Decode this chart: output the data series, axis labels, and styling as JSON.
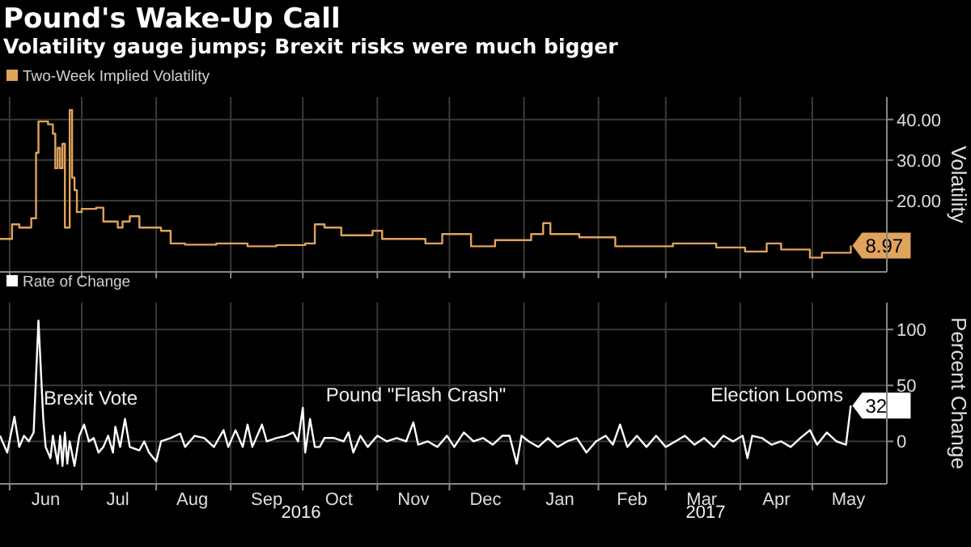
{
  "chart_data": [
    {
      "type": "step",
      "title": "Pound's Wake-Up Call",
      "subtitle": "Volatility gauge jumps; Brexit risks were much bigger",
      "ylabel": "Volatility",
      "legend": "top left",
      "grid": true,
      "tick_labels": "y",
      "xlim": [
        "2016-05-28",
        "2017-06-01"
      ],
      "xticks": [
        {
          "value": "2016-06-01",
          "label": null
        },
        {
          "value": "2016-07-01",
          "label": null
        },
        {
          "value": "2016-08-01",
          "label": null
        },
        {
          "value": "2016-09-01",
          "label": null
        },
        {
          "value": "2016-10-01",
          "label": null
        },
        {
          "value": "2016-11-01",
          "label": null
        },
        {
          "value": "2016-12-01",
          "label": null
        },
        {
          "value": "2017-01-01",
          "label": null
        },
        {
          "value": "2017-02-01",
          "label": null
        },
        {
          "value": "2017-03-01",
          "label": null
        },
        {
          "value": "2017-04-01",
          "label": null
        },
        {
          "value": "2017-05-01",
          "label": null
        }
      ],
      "ylim": [
        2.5,
        45.5
      ],
      "yticks": [
        {
          "value": 20,
          "label": "20.00"
        },
        {
          "value": 30,
          "label": "30.00"
        },
        {
          "value": 40,
          "label": "40.00"
        }
      ],
      "x": [
        "2016-05-28",
        "2016-06-01",
        "2016-06-02",
        "2016-06-05",
        "2016-06-10",
        "2016-06-12",
        "2016-06-13",
        "2016-06-17",
        "2016-06-19",
        "2016-06-20",
        "2016-06-21",
        "2016-06-22",
        "2016-06-23",
        "2016-06-24",
        "2016-06-26",
        "2016-06-27",
        "2016-06-28",
        "2016-06-29",
        "2016-07-01",
        "2016-07-07",
        "2016-07-10",
        "2016-07-16",
        "2016-07-18",
        "2016-07-21",
        "2016-07-25",
        "2016-08-03",
        "2016-08-07",
        "2016-08-13",
        "2016-08-26",
        "2016-09-08",
        "2016-09-20",
        "2016-10-02",
        "2016-10-06",
        "2016-10-10",
        "2016-10-17",
        "2016-10-30",
        "2016-11-03",
        "2016-11-21",
        "2016-11-28",
        "2016-12-10",
        "2016-12-20",
        "2017-01-04",
        "2017-01-09",
        "2017-01-12",
        "2017-01-24",
        "2017-02-08",
        "2017-02-23",
        "2017-03-04",
        "2017-03-22",
        "2017-04-03",
        "2017-04-12",
        "2017-04-18",
        "2017-04-30",
        "2017-05-05",
        "2017-05-15",
        "2017-05-17"
      ],
      "series": [
        {
          "name": "Two-Week Implied Volatility",
          "color": "#e0a35a",
          "values": [
            10.6,
            10.6,
            14.2,
            13.4,
            15.7,
            31.8,
            39.5,
            38.8,
            36.5,
            28,
            33,
            28,
            34,
            13.4,
            42.3,
            25.7,
            22.6,
            17.2,
            18,
            18.3,
            14.9,
            13.4,
            14.9,
            16.2,
            13.4,
            12.6,
            9.5,
            9.2,
            9.5,
            8.8,
            9.1,
            9.5,
            14.2,
            13.4,
            11.5,
            12.6,
            10.6,
            9.5,
            11.8,
            8.8,
            10.3,
            11.8,
            14.5,
            11.8,
            11,
            8.8,
            8.8,
            9.5,
            8.5,
            7.5,
            9.5,
            8,
            6,
            7.2,
            7.2,
            8.97
          ],
          "value_labels": [
            null,
            null,
            null,
            null,
            null,
            null,
            null,
            null,
            null,
            null,
            null,
            null,
            null,
            null,
            null,
            null,
            null,
            null,
            null,
            null,
            null,
            null,
            null,
            null,
            null,
            null,
            null,
            null,
            null,
            null,
            null,
            null,
            null,
            null,
            null,
            null,
            null,
            null,
            null,
            null,
            null,
            null,
            null,
            null,
            null,
            null,
            null,
            null,
            null,
            null,
            null,
            null,
            null,
            null,
            null,
            "8.97"
          ]
        }
      ]
    },
    {
      "type": "line",
      "ylabel": "Percent Change",
      "legend": "top left",
      "grid": true,
      "xlim": [
        "2016-05-28",
        "2017-06-01"
      ],
      "xticks": [
        {
          "value": "2016-06-01",
          "label": null
        },
        {
          "value": "2016-06-16",
          "label": "Jun"
        },
        {
          "value": "2016-07-01",
          "label": null
        },
        {
          "value": "2016-07-16",
          "label": "Jul"
        },
        {
          "value": "2016-08-01",
          "label": null
        },
        {
          "value": "2016-08-16",
          "label": "Aug"
        },
        {
          "value": "2016-09-01",
          "label": null
        },
        {
          "value": "2016-09-16",
          "label": "Sep"
        },
        {
          "value": "2016-10-01",
          "label": null
        },
        {
          "value": "2016-10-16",
          "label": "Oct"
        },
        {
          "value": "2016-11-01",
          "label": null
        },
        {
          "value": "2016-11-16",
          "label": "Nov"
        },
        {
          "value": "2016-12-01",
          "label": null
        },
        {
          "value": "2016-12-16",
          "label": "Dec"
        },
        {
          "value": "2017-01-01",
          "label": null
        },
        {
          "value": "2017-01-16",
          "label": "Jan"
        },
        {
          "value": "2017-02-01",
          "label": null
        },
        {
          "value": "2017-02-15",
          "label": "Feb"
        },
        {
          "value": "2017-03-01",
          "label": null
        },
        {
          "value": "2017-03-16",
          "label": "Mar"
        },
        {
          "value": "2017-04-01",
          "label": null
        },
        {
          "value": "2017-04-16",
          "label": "Apr"
        },
        {
          "value": "2017-05-01",
          "label": null
        },
        {
          "value": "2017-05-16",
          "label": "May"
        }
      ],
      "ylim": [
        -38,
        124
      ],
      "yticks": [
        0,
        50,
        100
      ],
      "annotations": [
        "Brexit Vote",
        "Pound \"Flash Crash\"",
        "Election Looms",
        "2016",
        "2017"
      ],
      "x": [
        "2016-05-28",
        "2016-05-31",
        "2016-06-03",
        "2016-06-05",
        "2016-06-07",
        "2016-06-09",
        "2016-06-11",
        "2016-06-13",
        "2016-06-15",
        "2016-06-16",
        "2016-06-18",
        "2016-06-19",
        "2016-06-21",
        "2016-06-22",
        "2016-06-23",
        "2016-06-24",
        "2016-06-25",
        "2016-06-26",
        "2016-06-28",
        "2016-06-30",
        "2016-07-02",
        "2016-07-04",
        "2016-07-06",
        "2016-07-08",
        "2016-07-10",
        "2016-07-12",
        "2016-07-14",
        "2016-07-15",
        "2016-07-17",
        "2016-07-19",
        "2016-07-21",
        "2016-07-25",
        "2016-07-27",
        "2016-07-29",
        "2016-08-01",
        "2016-08-03",
        "2016-08-07",
        "2016-08-11",
        "2016-08-13",
        "2016-08-17",
        "2016-08-21",
        "2016-08-25",
        "2016-08-29",
        "2016-08-31",
        "2016-09-03",
        "2016-09-06",
        "2016-09-08",
        "2016-09-10",
        "2016-09-14",
        "2016-09-16",
        "2016-09-20",
        "2016-09-24",
        "2016-09-27",
        "2016-09-29",
        "2016-10-01",
        "2016-10-02",
        "2016-10-04",
        "2016-10-06",
        "2016-10-08",
        "2016-10-10",
        "2016-10-14",
        "2016-10-18",
        "2016-10-20",
        "2016-10-22",
        "2016-10-25",
        "2016-10-28",
        "2016-11-01",
        "2016-11-05",
        "2016-11-09",
        "2016-11-13",
        "2016-11-16",
        "2016-11-18",
        "2016-11-22",
        "2016-11-26",
        "2016-11-30",
        "2016-12-03",
        "2016-12-07",
        "2016-12-11",
        "2016-12-15",
        "2016-12-19",
        "2016-12-23",
        "2016-12-26",
        "2016-12-29",
        "2016-12-31",
        "2017-01-03",
        "2017-01-07",
        "2017-01-11",
        "2017-01-15",
        "2017-01-19",
        "2017-01-23",
        "2017-01-27",
        "2017-01-31",
        "2017-02-04",
        "2017-02-07",
        "2017-02-10",
        "2017-02-13",
        "2017-02-17",
        "2017-02-21",
        "2017-02-25",
        "2017-03-01",
        "2017-03-05",
        "2017-03-09",
        "2017-03-13",
        "2017-03-17",
        "2017-03-21",
        "2017-03-25",
        "2017-03-29",
        "2017-04-02",
        "2017-04-04",
        "2017-04-06",
        "2017-04-10",
        "2017-04-14",
        "2017-04-18",
        "2017-04-22",
        "2017-04-26",
        "2017-04-30",
        "2017-05-03",
        "2017-05-07",
        "2017-05-11",
        "2017-05-15",
        "2017-05-17"
      ],
      "series": [
        {
          "name": "Rate of Change",
          "color": "#ffffff",
          "values": [
            5,
            -10,
            22,
            -5,
            5,
            0,
            8,
            108,
            20,
            -5,
            -15,
            5,
            -20,
            5,
            -22,
            8,
            -20,
            0,
            -22,
            5,
            15,
            0,
            3,
            -10,
            -5,
            5,
            -10,
            13,
            -5,
            20,
            -5,
            -8,
            0,
            -10,
            -18,
            0,
            3,
            7,
            -5,
            5,
            3,
            -5,
            10,
            -5,
            10,
            -5,
            15,
            -5,
            15,
            0,
            3,
            5,
            8,
            0,
            30,
            -10,
            20,
            -5,
            -5,
            3,
            3,
            0,
            8,
            -10,
            5,
            -5,
            5,
            0,
            3,
            0,
            17,
            -3,
            0,
            -5,
            5,
            -5,
            8,
            0,
            3,
            -3,
            5,
            5,
            -20,
            5,
            0,
            -5,
            3,
            -5,
            0,
            3,
            -10,
            0,
            5,
            -3,
            15,
            -5,
            5,
            -5,
            5,
            -5,
            0,
            5,
            -3,
            3,
            -5,
            5,
            0,
            5,
            -15,
            5,
            3,
            -3,
            0,
            -5,
            3,
            10,
            -3,
            8,
            0,
            -3,
            32
          ],
          "value_labels": [
            null,
            null,
            null,
            null,
            null,
            null,
            null,
            null,
            null,
            null,
            null,
            null,
            null,
            null,
            null,
            null,
            null,
            null,
            null,
            null,
            null,
            null,
            null,
            null,
            null,
            null,
            null,
            null,
            null,
            null,
            null,
            null,
            null,
            null,
            null,
            null,
            null,
            null,
            null,
            null,
            null,
            null,
            null,
            null,
            null,
            null,
            null,
            null,
            null,
            null,
            null,
            null,
            null,
            null,
            null,
            null,
            null,
            null,
            null,
            null,
            null,
            null,
            null,
            null,
            null,
            null,
            null,
            null,
            null,
            null,
            null,
            null,
            null,
            null,
            null,
            null,
            null,
            null,
            null,
            null,
            null,
            null,
            null,
            null,
            null,
            null,
            null,
            null,
            null,
            null,
            null,
            null,
            null,
            null,
            null,
            null,
            null,
            null,
            null,
            null,
            null,
            null,
            null,
            null,
            null,
            null,
            null,
            null,
            null,
            null,
            null,
            null,
            null,
            null,
            null,
            null,
            null,
            null,
            null,
            null,
            "32"
          ]
        }
      ]
    }
  ]
}
